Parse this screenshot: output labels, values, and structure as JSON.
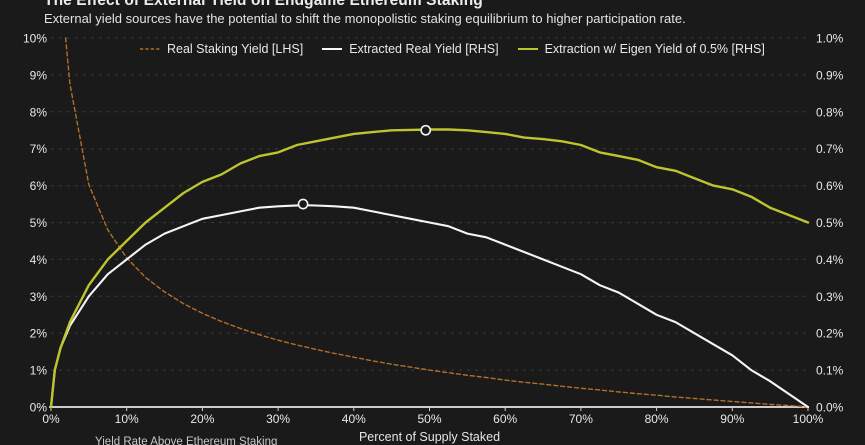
{
  "header": {
    "title": "The Effect of External Yield on Endgame Ethereum Staking",
    "subtitle": "External yield sources have the potential to shift the monopolistic staking equilibrium to higher participation rate."
  },
  "footer": {
    "note": "Yield Rate Above Ethereum Staking"
  },
  "colors": {
    "background": "#1a1a1a",
    "grid": "#3a3a3a",
    "axis": "#e6e6e6",
    "tick_text": "#e8e8e8",
    "real_staking_yield": "#b0702b",
    "extracted_real_yield": "#f5f5f5",
    "eigen_extraction": "#bdc42e"
  },
  "chart_data": {
    "type": "line",
    "title": "The Effect of External Yield on Endgame Ethereum Staking",
    "subtitle": "External yield sources have the potential to shift the monopolistic staking equilibrium to higher participation rate.",
    "xlabel": "Percent of Supply Staked",
    "x_axis": {
      "range": [
        0,
        100
      ],
      "tick_labels": [
        "0%",
        "10%",
        "20%",
        "30%",
        "40%",
        "50%",
        "60%",
        "70%",
        "80%",
        "90%",
        "100%"
      ],
      "tick_values": [
        0,
        10,
        20,
        30,
        40,
        50,
        60,
        70,
        80,
        90,
        100
      ]
    },
    "left_axis": {
      "side": "LHS",
      "range": [
        0,
        10
      ],
      "tick_labels": [
        "0%",
        "1%",
        "2%",
        "3%",
        "4%",
        "5%",
        "6%",
        "7%",
        "8%",
        "9%",
        "10%"
      ],
      "tick_values": [
        0,
        1,
        2,
        3,
        4,
        5,
        6,
        7,
        8,
        9,
        10
      ]
    },
    "right_axis": {
      "side": "RHS",
      "range": [
        0,
        1
      ],
      "tick_labels": [
        "0.0%",
        "0.1%",
        "0.2%",
        "0.3%",
        "0.4%",
        "0.5%",
        "0.6%",
        "0.7%",
        "0.8%",
        "0.9%",
        "1.0%"
      ],
      "tick_values": [
        0,
        0.1,
        0.2,
        0.3,
        0.4,
        0.5,
        0.6,
        0.7,
        0.8,
        0.9,
        1.0
      ]
    },
    "grid": "horizontal-dashed",
    "legend_position": "top",
    "series": [
      {
        "name": "Real Staking Yield [LHS]",
        "axis": "left",
        "style": "dashed",
        "color": "#b0702b",
        "points": [
          [
            1.93,
            10
          ],
          [
            2.5,
            8.76
          ],
          [
            5,
            6.03
          ],
          [
            7.5,
            4.8
          ],
          [
            10,
            4.04
          ],
          [
            12.5,
            3.51
          ],
          [
            15,
            3.12
          ],
          [
            17.5,
            2.8
          ],
          [
            20,
            2.54
          ],
          [
            22.5,
            2.32
          ],
          [
            25,
            2.13
          ],
          [
            27.5,
            1.96
          ],
          [
            30,
            1.81
          ],
          [
            32.5,
            1.68
          ],
          [
            35,
            1.56
          ],
          [
            37.5,
            1.45
          ],
          [
            40,
            1.35
          ],
          [
            42.5,
            1.25
          ],
          [
            45,
            1.16
          ],
          [
            47.5,
            1.08
          ],
          [
            50,
            1.0
          ],
          [
            52.5,
            0.93
          ],
          [
            55,
            0.86
          ],
          [
            57.5,
            0.8
          ],
          [
            60,
            0.73
          ],
          [
            62.5,
            0.67
          ],
          [
            65,
            0.62
          ],
          [
            67.5,
            0.56
          ],
          [
            70,
            0.51
          ],
          [
            72.5,
            0.46
          ],
          [
            75,
            0.41
          ],
          [
            77.5,
            0.36
          ],
          [
            80,
            0.32
          ],
          [
            82.5,
            0.27
          ],
          [
            85,
            0.23
          ],
          [
            87.5,
            0.19
          ],
          [
            90,
            0.15
          ],
          [
            92.5,
            0.11
          ],
          [
            95,
            0.07
          ],
          [
            97.5,
            0.04
          ],
          [
            100,
            0
          ]
        ]
      },
      {
        "name": "Extracted Real Yield [RHS]",
        "axis": "right",
        "style": "solid",
        "color": "#f5f5f5",
        "points": [
          [
            0,
            0
          ],
          [
            0.5,
            0.1
          ],
          [
            1.25,
            0.16
          ],
          [
            2.5,
            0.22
          ],
          [
            5,
            0.3
          ],
          [
            7.5,
            0.36
          ],
          [
            10,
            0.4
          ],
          [
            12.5,
            0.44
          ],
          [
            15,
            0.47
          ],
          [
            17.5,
            0.49
          ],
          [
            20,
            0.51
          ],
          [
            22.5,
            0.52
          ],
          [
            25,
            0.53
          ],
          [
            27.5,
            0.54
          ],
          [
            30,
            0.544
          ],
          [
            33.3,
            0.547
          ],
          [
            35,
            0.546
          ],
          [
            37.5,
            0.544
          ],
          [
            40,
            0.54
          ],
          [
            42.5,
            0.53
          ],
          [
            45,
            0.52
          ],
          [
            47.5,
            0.51
          ],
          [
            50,
            0.5
          ],
          [
            52.5,
            0.49
          ],
          [
            55,
            0.47
          ],
          [
            57.5,
            0.46
          ],
          [
            60,
            0.44
          ],
          [
            62.5,
            0.42
          ],
          [
            65,
            0.4
          ],
          [
            67.5,
            0.38
          ],
          [
            70,
            0.36
          ],
          [
            72.5,
            0.33
          ],
          [
            75,
            0.31
          ],
          [
            77.5,
            0.28
          ],
          [
            80,
            0.25
          ],
          [
            82.5,
            0.23
          ],
          [
            85,
            0.2
          ],
          [
            87.5,
            0.17
          ],
          [
            90,
            0.14
          ],
          [
            92.5,
            0.1
          ],
          [
            95,
            0.07
          ],
          [
            97.5,
            0.035
          ],
          [
            100,
            0
          ]
        ]
      },
      {
        "name": "Extraction w/ Eigen Yield of 0.5% [RHS]",
        "axis": "right",
        "style": "solid",
        "color": "#bdc42e",
        "points": [
          [
            0,
            0
          ],
          [
            0.5,
            0.1
          ],
          [
            1.25,
            0.16
          ],
          [
            2.5,
            0.23
          ],
          [
            5,
            0.33
          ],
          [
            7.5,
            0.4
          ],
          [
            10,
            0.45
          ],
          [
            12.5,
            0.5
          ],
          [
            15,
            0.54
          ],
          [
            17.5,
            0.58
          ],
          [
            20,
            0.61
          ],
          [
            22.5,
            0.63
          ],
          [
            25,
            0.66
          ],
          [
            27.5,
            0.68
          ],
          [
            30,
            0.69
          ],
          [
            32.5,
            0.71
          ],
          [
            35,
            0.72
          ],
          [
            37.5,
            0.73
          ],
          [
            40,
            0.74
          ],
          [
            42.5,
            0.745
          ],
          [
            45,
            0.75
          ],
          [
            47.5,
            0.751
          ],
          [
            50,
            0.752
          ],
          [
            52.5,
            0.752
          ],
          [
            55,
            0.75
          ],
          [
            57.5,
            0.745
          ],
          [
            60,
            0.74
          ],
          [
            62.5,
            0.73
          ],
          [
            65,
            0.726
          ],
          [
            67.5,
            0.72
          ],
          [
            70,
            0.71
          ],
          [
            72.5,
            0.69
          ],
          [
            75,
            0.68
          ],
          [
            77.5,
            0.67
          ],
          [
            80,
            0.65
          ],
          [
            82.5,
            0.64
          ],
          [
            85,
            0.62
          ],
          [
            87.5,
            0.6
          ],
          [
            90,
            0.59
          ],
          [
            92.5,
            0.57
          ],
          [
            95,
            0.54
          ],
          [
            97.5,
            0.52
          ],
          [
            100,
            0.5
          ]
        ]
      }
    ],
    "markers": [
      {
        "series": 1,
        "x": 33.3,
        "y": 0.55,
        "note": "peak of Extracted Real Yield"
      },
      {
        "series": 2,
        "x": 49.5,
        "y": 0.75,
        "note": "peak of Extraction w/ Eigen Yield"
      }
    ]
  }
}
